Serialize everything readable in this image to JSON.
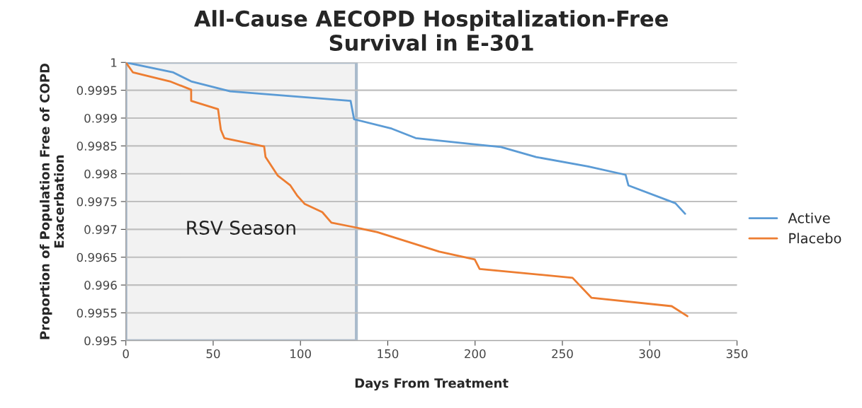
{
  "chart_data": {
    "type": "line",
    "title": "All-Cause AECOPD Hospitalization-Free\nSurvival in E-301",
    "xlabel": "Days From Treatment",
    "ylabel": "Proportion of Population Free of COPD\nExacerbation",
    "series": [
      {
        "name": "Active",
        "color": "#5b9bd5",
        "x": [
          0,
          27.2,
          37.4,
          59.7,
          128.7,
          130.7,
          152.3,
          166,
          202.6,
          214.8,
          235,
          264.7,
          286.2,
          287.8,
          314.7,
          320.3
        ],
        "values": [
          1,
          0.99982,
          0.99966,
          0.99948,
          0.99931,
          0.99898,
          0.99881,
          0.99864,
          0.99852,
          0.99848,
          0.9983,
          0.99813,
          0.99798,
          0.99779,
          0.99747,
          0.99728
        ]
      },
      {
        "name": "Placebo",
        "color": "#ed7d31",
        "x": [
          0,
          4.1,
          25.2,
          37.4,
          37.4,
          52.8,
          54.4,
          56.4,
          79.2,
          80,
          86.9,
          94.2,
          98.3,
          102.3,
          112.5,
          117.7,
          130.7,
          144.1,
          179.5,
          199.8,
          202.6,
          255.8,
          266.7,
          312.6,
          321.6
        ],
        "values": [
          1,
          0.99982,
          0.99966,
          0.99951,
          0.99931,
          0.99916,
          0.99879,
          0.99864,
          0.99849,
          0.9983,
          0.99797,
          0.99779,
          0.9976,
          0.99746,
          0.99731,
          0.99712,
          0.99704,
          0.99695,
          0.9966,
          0.99646,
          0.99629,
          0.99613,
          0.99577,
          0.99562,
          0.99544
        ]
      }
    ],
    "xlim": [
      0,
      350
    ],
    "xticks": [
      0,
      50,
      100,
      150,
      200,
      250,
      300,
      350
    ],
    "ylim": [
      0.995,
      1
    ],
    "yticks": [
      0.995,
      0.9955,
      0.996,
      0.9965,
      0.997,
      0.9975,
      0.998,
      0.9985,
      0.999,
      0.9995,
      1
    ],
    "bands": [
      {
        "axis": "x",
        "from": 0,
        "to": 132,
        "label": "RSV Season",
        "color": "#f2f2f2"
      }
    ],
    "grid": "y",
    "legend": "right",
    "marker": "none",
    "line_style": "solid"
  }
}
